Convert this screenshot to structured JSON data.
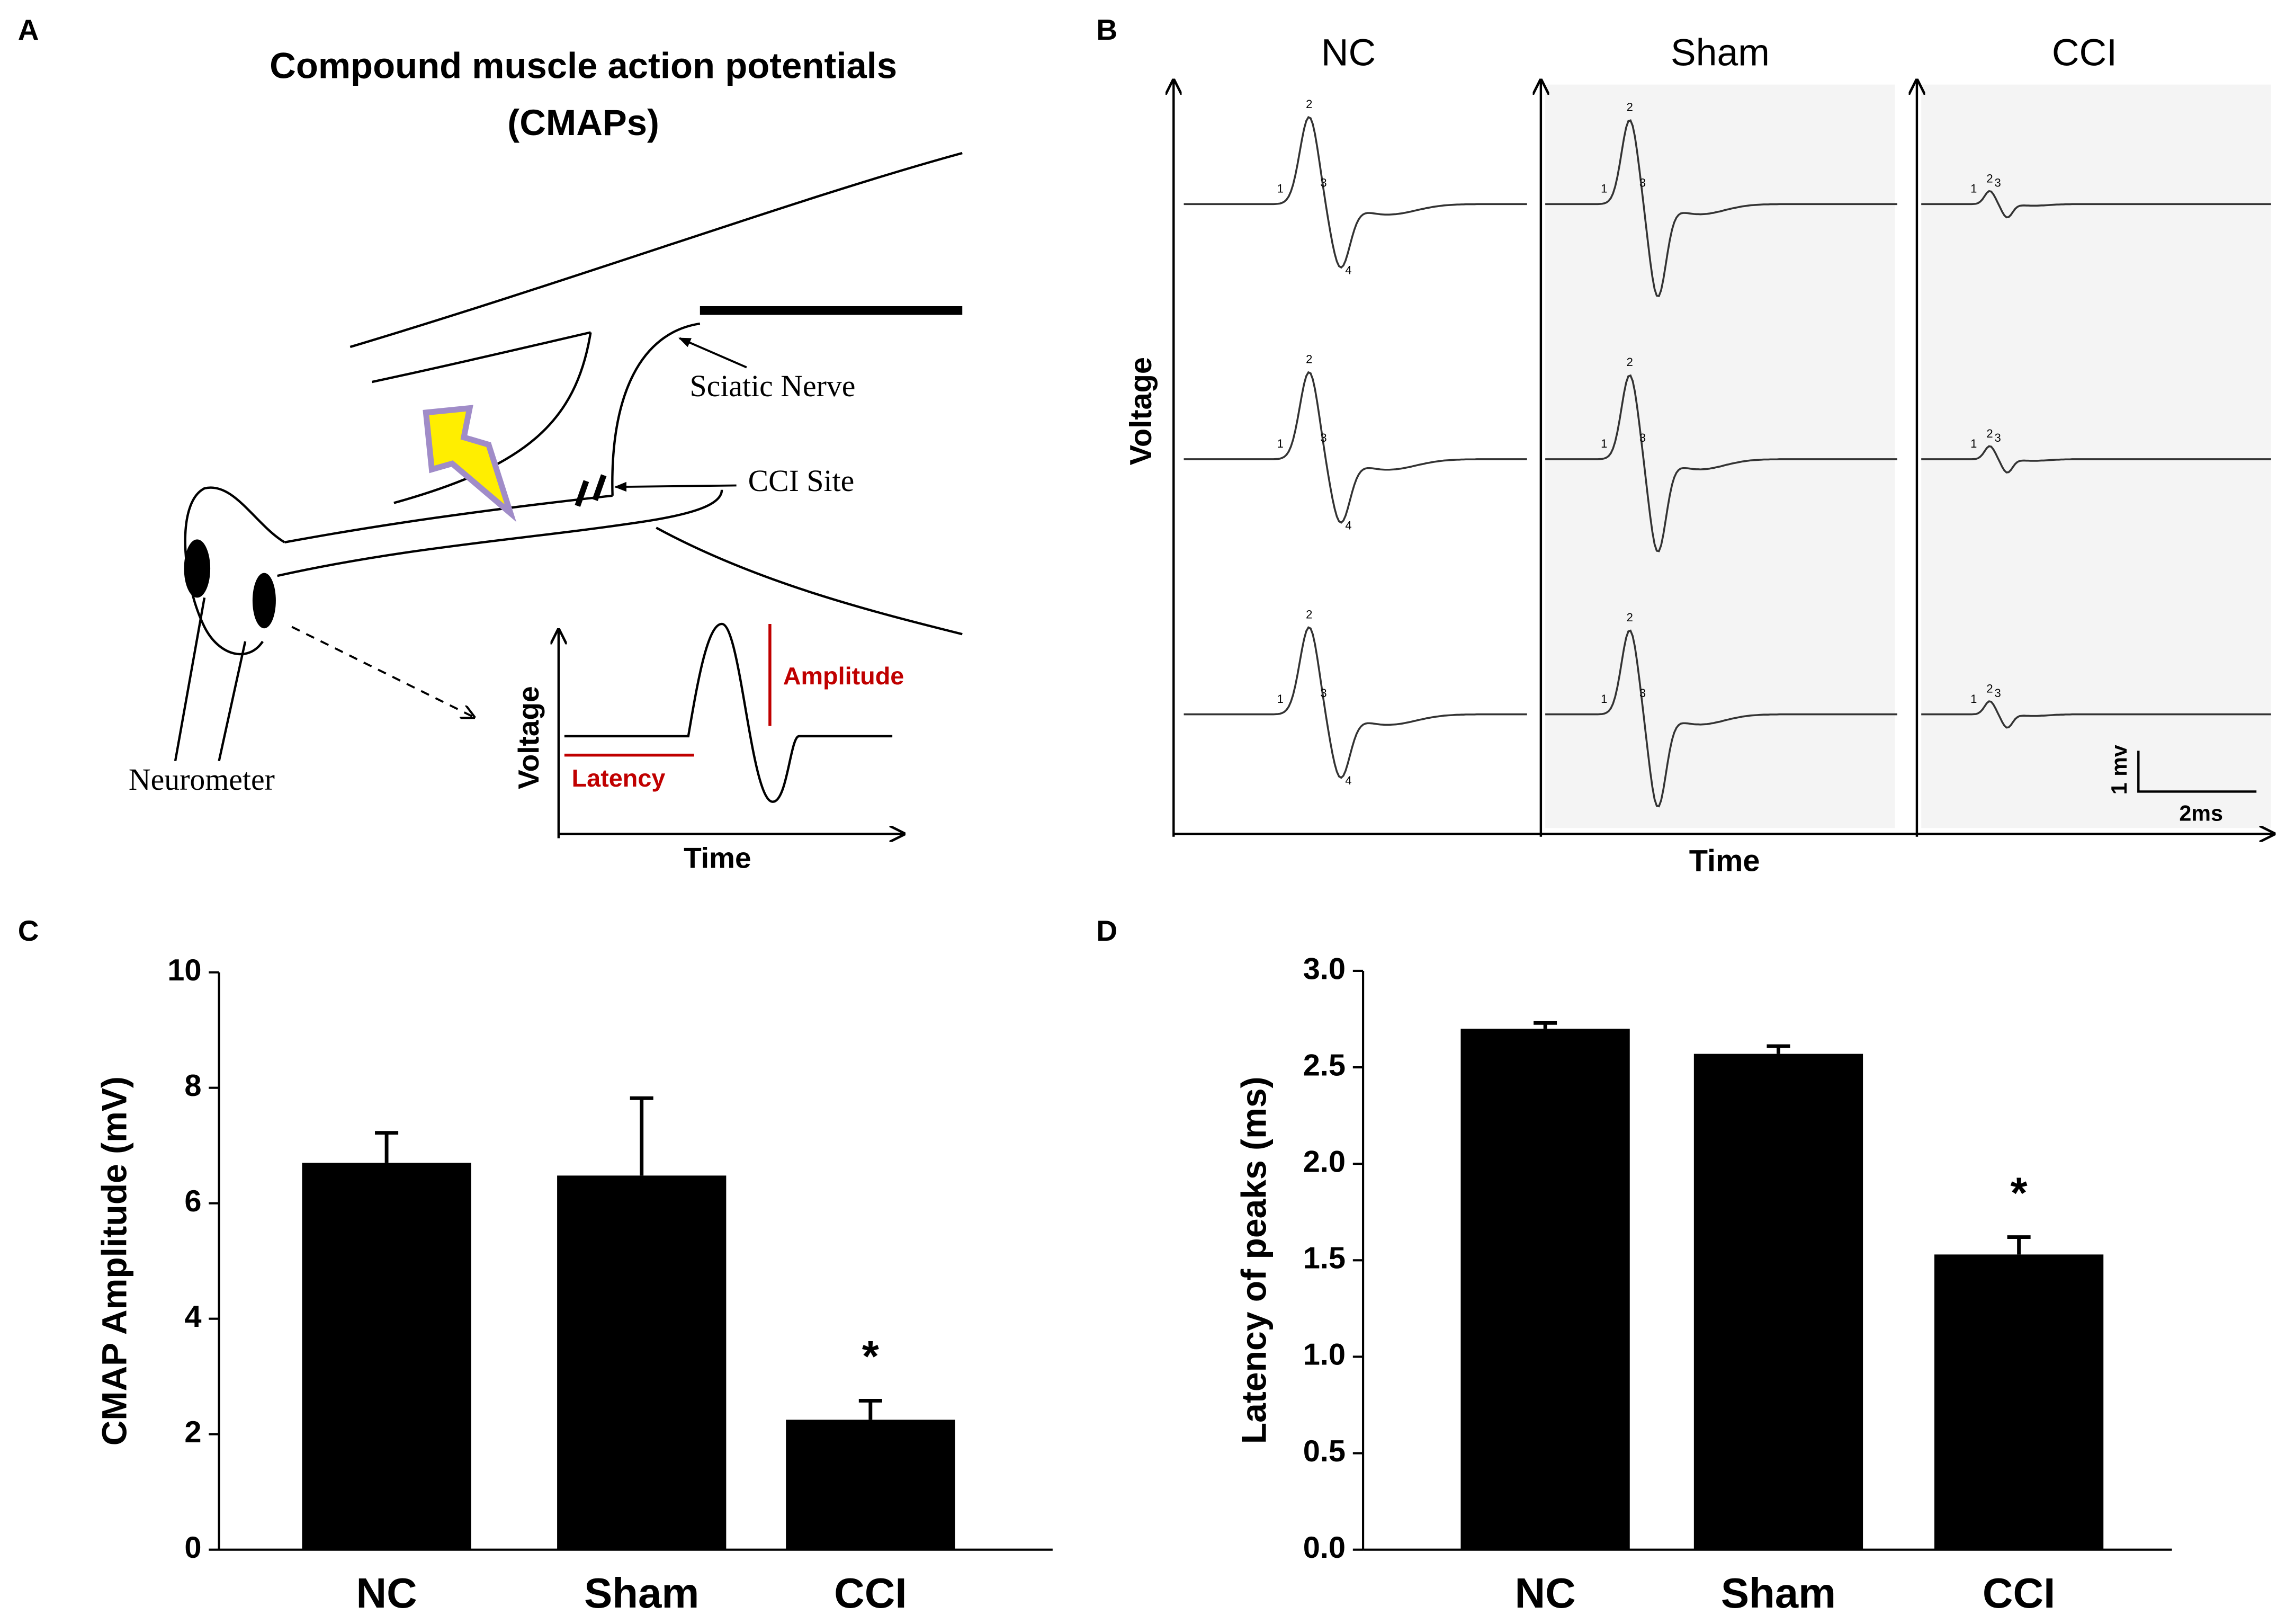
{
  "panel_labels": [
    "A",
    "B",
    "C",
    "D"
  ],
  "diagram": {
    "title_lines": [
      "Compound muscle action potentials",
      "(CMAPs)"
    ],
    "sciatic_label": "Sciatic Nerve",
    "cci_label": "CCI Site",
    "neurometer_label": "Neurometer",
    "inset": {
      "y_label": "Voltage",
      "x_label": "Time",
      "amplitude": "Amplitude",
      "latency": "Latency"
    }
  },
  "recordings": {
    "groups": [
      "NC",
      "Sham",
      "CCI"
    ],
    "y_label": "Voltage",
    "x_label": "Time",
    "scale_voltage": "1 mv",
    "scale_time": "2ms",
    "peak_numbers": [
      "1",
      "2",
      "3",
      "4"
    ]
  },
  "chart_data": [
    {
      "type": "bar",
      "y_label": "CMAP Amplitude (mV)",
      "categories": [
        "NC",
        "Sham",
        "CCI"
      ],
      "values": [
        6.7,
        6.48,
        2.25
      ],
      "errors": [
        0.52,
        1.34,
        0.33
      ],
      "significance": [
        null,
        null,
        "*"
      ],
      "color": "#000000",
      "ylim": [
        0,
        10
      ],
      "yticks": [
        0,
        2,
        4,
        6,
        8,
        10
      ]
    },
    {
      "type": "bar",
      "y_label": "Latency of peaks (ms)",
      "categories": [
        "NC",
        "Sham",
        "CCI"
      ],
      "values": [
        2.7,
        2.57,
        1.53
      ],
      "errors": [
        0.03,
        0.04,
        0.09
      ],
      "significance": [
        null,
        null,
        "*"
      ],
      "color": "#000000",
      "ylim": [
        0,
        3
      ],
      "yticks": [
        {
          "value": 0,
          "label": "0.0"
        },
        {
          "value": 0.5,
          "label": "0.5"
        },
        {
          "value": 1,
          "label": "1.0"
        },
        {
          "value": 1.5,
          "label": "1.5"
        },
        {
          "value": 2,
          "label": "2.0"
        },
        {
          "value": 2.5,
          "label": "2.5"
        },
        {
          "value": 3,
          "label": "3.0"
        }
      ]
    }
  ]
}
